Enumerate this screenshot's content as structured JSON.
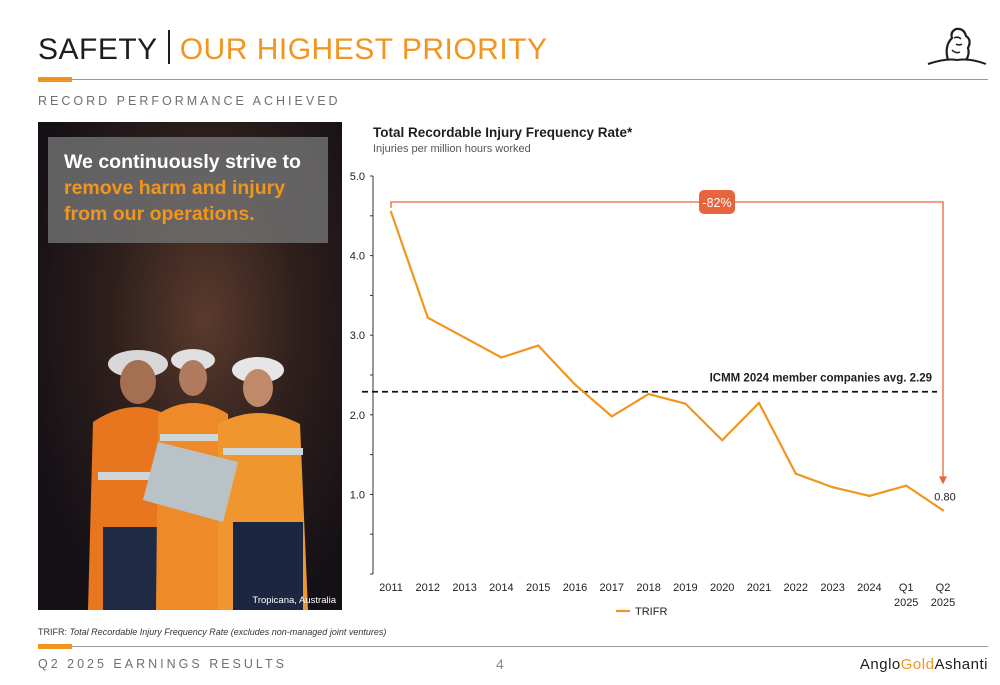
{
  "header": {
    "title_main": "SAFETY",
    "title_accent": "OUR HIGHEST PRIORITY",
    "subtitle": "RECORD PERFORMANCE ACHIEVED"
  },
  "photo": {
    "quote_line1": "We continuously strive to",
    "quote_line2": "remove harm and injury",
    "quote_line3": "from our operations.",
    "caption": "Tropicana, Australia"
  },
  "colors": {
    "accent": "#f1951f",
    "annotation": "#e8643c",
    "text": "#1e1e1e"
  },
  "chart_data": {
    "type": "line",
    "title": "Total Recordable Injury Frequency Rate*",
    "subtitle": "Injuries per million hours worked",
    "categories": [
      "2011",
      "2012",
      "2013",
      "2014",
      "2015",
      "2016",
      "2017",
      "2018",
      "2019",
      "2020",
      "2021",
      "2022",
      "2023",
      "2024",
      "Q1\n2025",
      "Q2\n2025"
    ],
    "series": [
      {
        "name": "TRIFR",
        "color": "#f1951f",
        "values": [
          4.55,
          3.22,
          2.97,
          2.72,
          2.87,
          2.38,
          1.98,
          2.26,
          2.14,
          1.68,
          2.15,
          1.26,
          1.09,
          0.98,
          1.11,
          0.8
        ]
      }
    ],
    "yticks": [
      "5.0",
      "4.0",
      "3.0",
      "2.0",
      "1.0"
    ],
    "ylim": [
      0,
      5.0
    ],
    "reference_line": {
      "value": 2.29,
      "label": "ICMM 2024 member companies avg. 2.29"
    },
    "change_annotation": {
      "label": "-82%",
      "from_index": 0,
      "to_index": 15
    },
    "end_label": "0.80",
    "legend": "bottom-center",
    "grid": false
  },
  "footnote": {
    "prefix": "TRIFR: ",
    "text": "Total Recordable Injury Frequency Rate (excludes non-managed joint ventures)"
  },
  "footer": {
    "left": "Q2 2025 EARNINGS RESULTS",
    "page": "4",
    "brand_1": "Anglo",
    "brand_2": "Gold",
    "brand_3": "Ashanti"
  }
}
